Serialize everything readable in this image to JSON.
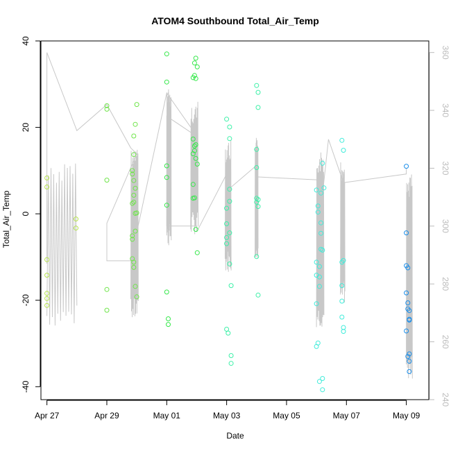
{
  "chart_data": {
    "type": "scatter",
    "title": "ATOM4 Southbound Total_Air_Temp",
    "xlabel": "Date",
    "ylabel": "Total_Air_Temp",
    "xlim": [
      -0.2,
      12.75
    ],
    "ylim": [
      -43,
      40
    ],
    "y2lim": [
      240,
      364
    ],
    "x_ticks": [
      {
        "value": 0,
        "label": "Apr 27"
      },
      {
        "value": 2,
        "label": "Apr 29"
      },
      {
        "value": 4,
        "label": "May 01"
      },
      {
        "value": 6,
        "label": "May 03"
      },
      {
        "value": 8,
        "label": "May 05"
      },
      {
        "value": 10,
        "label": "May 07"
      },
      {
        "value": 12,
        "label": "May 09"
      }
    ],
    "y_ticks": [
      {
        "value": -40,
        "label": "-40"
      },
      {
        "value": -20,
        "label": "-20"
      },
      {
        "value": 0,
        "label": "0"
      },
      {
        "value": 20,
        "label": "20"
      },
      {
        "value": 40,
        "label": "40"
      }
    ],
    "y2_ticks": [
      {
        "value": 240,
        "label": "240"
      },
      {
        "value": 260,
        "label": "260"
      },
      {
        "value": 280,
        "label": "280"
      },
      {
        "value": 300,
        "label": "300"
      },
      {
        "value": 320,
        "label": "320"
      },
      {
        "value": 340,
        "label": "340"
      },
      {
        "value": 360,
        "label": "360"
      }
    ],
    "grid": false,
    "legend": "none",
    "colors": {
      "secondary_series": "#c8c8c8",
      "secondary_axis": "#bbbbbb"
    },
    "series": [
      {
        "color": "#b5e34a",
        "points": [
          [
            0.0,
            8.3
          ],
          [
            0.0,
            6.2
          ],
          [
            0.0,
            -10.6
          ],
          [
            0.0,
            -14.2
          ],
          [
            0.0,
            -18.4
          ],
          [
            0.0,
            -19.6
          ],
          [
            0.0,
            -21.2
          ],
          [
            0.97,
            -1.2
          ],
          [
            0.97,
            -3.3
          ]
        ]
      },
      {
        "color": "#6fe54a",
        "points": [
          [
            2.0,
            25.0
          ],
          [
            2.0,
            24.2
          ],
          [
            2.0,
            7.8
          ],
          [
            2.0,
            -17.5
          ],
          [
            2.0,
            -22.3
          ],
          [
            2.85,
            10.0
          ],
          [
            2.85,
            9.2
          ],
          [
            2.85,
            2.4
          ],
          [
            2.85,
            -5.1
          ],
          [
            2.85,
            -5.9
          ],
          [
            2.85,
            -10.4
          ],
          [
            2.9,
            18.0
          ],
          [
            2.9,
            13.7
          ],
          [
            2.9,
            7.7
          ],
          [
            2.9,
            4.3
          ],
          [
            2.9,
            2.7
          ],
          [
            2.9,
            -11.2
          ],
          [
            2.9,
            -12.4
          ],
          [
            2.95,
            20.7
          ],
          [
            2.95,
            5.9
          ],
          [
            2.95,
            0.1
          ],
          [
            2.95,
            -4.0
          ],
          [
            2.95,
            -16.8
          ],
          [
            3.0,
            25.3
          ],
          [
            3.0,
            0.2
          ],
          [
            3.0,
            -19.2
          ]
        ]
      },
      {
        "color": "#35e84a",
        "points": [
          [
            4.0,
            37.0
          ],
          [
            4.0,
            30.5
          ],
          [
            4.0,
            11.1
          ],
          [
            4.0,
            8.4
          ],
          [
            4.0,
            2.0
          ],
          [
            4.0,
            -18.1
          ],
          [
            4.05,
            -24.3
          ],
          [
            4.05,
            -25.6
          ],
          [
            4.88,
            31.5
          ],
          [
            4.88,
            17.3
          ],
          [
            4.88,
            13.9
          ],
          [
            4.88,
            6.8
          ],
          [
            4.88,
            3.6
          ],
          [
            4.93,
            34.9
          ],
          [
            4.93,
            32.0
          ],
          [
            4.93,
            15.7
          ],
          [
            4.93,
            14.6
          ],
          [
            4.93,
            3.7
          ],
          [
            4.97,
            36.0
          ],
          [
            4.97,
            31.3
          ],
          [
            4.97,
            16.0
          ],
          [
            4.97,
            12.8
          ],
          [
            4.97,
            -3.6
          ],
          [
            5.02,
            34.0
          ],
          [
            5.02,
            11.5
          ],
          [
            5.02,
            -9.0
          ]
        ]
      },
      {
        "color": "#3df0a8",
        "points": [
          [
            6.0,
            21.9
          ],
          [
            6.0,
            1.3
          ],
          [
            6.0,
            -2.3
          ],
          [
            6.0,
            -5.5
          ],
          [
            6.0,
            -6.9
          ],
          [
            6.0,
            -26.7
          ],
          [
            6.05,
            -27.6
          ],
          [
            6.1,
            20.1
          ],
          [
            6.1,
            17.4
          ],
          [
            6.1,
            5.7
          ],
          [
            6.1,
            2.9
          ],
          [
            6.1,
            -4.4
          ],
          [
            6.1,
            -11.6
          ],
          [
            6.15,
            -16.6
          ],
          [
            6.15,
            -32.8
          ],
          [
            6.15,
            -34.6
          ],
          [
            7.0,
            29.7
          ],
          [
            7.0,
            14.9
          ],
          [
            7.0,
            10.7
          ],
          [
            7.0,
            3.6
          ],
          [
            7.0,
            2.7
          ],
          [
            7.0,
            -9.9
          ],
          [
            7.05,
            28.1
          ],
          [
            7.05,
            24.6
          ],
          [
            7.05,
            3.3
          ],
          [
            7.05,
            1.7
          ],
          [
            7.05,
            -18.8
          ]
        ]
      },
      {
        "color": "#40ecda",
        "points": [
          [
            9.0,
            5.5
          ],
          [
            9.0,
            -11.2
          ],
          [
            9.0,
            -14.2
          ],
          [
            9.0,
            -20.8
          ],
          [
            9.0,
            -30.7
          ],
          [
            9.05,
            -29.9
          ],
          [
            9.05,
            1.8
          ],
          [
            9.05,
            0.4
          ],
          [
            9.1,
            -12.2
          ],
          [
            9.1,
            -14.6
          ],
          [
            9.1,
            -16.8
          ],
          [
            9.1,
            -38.8
          ],
          [
            9.15,
            4.8
          ],
          [
            9.15,
            -2.1
          ],
          [
            9.15,
            -4.5
          ],
          [
            9.15,
            -8.2
          ],
          [
            9.2,
            -8.4
          ],
          [
            9.2,
            -38.1
          ],
          [
            9.2,
            -40.7
          ],
          [
            9.2,
            11.7
          ],
          [
            9.25,
            6.0
          ],
          [
            9.85,
            17.0
          ],
          [
            9.85,
            -11.2
          ],
          [
            9.85,
            -16.6
          ],
          [
            9.85,
            -20.2
          ],
          [
            9.85,
            -23.9
          ],
          [
            9.9,
            14.7
          ],
          [
            9.9,
            -10.8
          ],
          [
            9.9,
            -26.3
          ],
          [
            9.9,
            -27.2
          ]
        ]
      },
      {
        "color": "#1a8eea",
        "points": [
          [
            12.0,
            11.0
          ],
          [
            12.0,
            -4.4
          ],
          [
            12.0,
            -12.0
          ],
          [
            12.0,
            -18.3
          ],
          [
            12.0,
            -27.1
          ],
          [
            12.05,
            -12.5
          ],
          [
            12.05,
            -20.6
          ],
          [
            12.05,
            -22.0
          ],
          [
            12.05,
            -33.0
          ],
          [
            12.1,
            -22.4
          ],
          [
            12.1,
            -24.4
          ],
          [
            12.1,
            -24.6
          ],
          [
            12.1,
            -32.4
          ],
          [
            12.1,
            -34.1
          ],
          [
            12.1,
            -36.5
          ]
        ]
      }
    ],
    "secondary_series": {
      "axis": "right",
      "color": "#c8c8c8",
      "points": [
        [
          0.0,
          287
        ],
        [
          0.0,
          360
        ],
        [
          1.0,
          333
        ],
        [
          2.0,
          342
        ],
        [
          2.8,
          327
        ],
        [
          3.0,
          325
        ],
        [
          2.0,
          301
        ],
        [
          2.0,
          288
        ],
        [
          2.9,
          288
        ],
        [
          2.9,
          293
        ],
        [
          4.0,
          346
        ],
        [
          4.88,
          333
        ],
        [
          4.88,
          334
        ],
        [
          5.0,
          333
        ],
        [
          5.0,
          331
        ],
        [
          4.0,
          338
        ],
        [
          4.0,
          300
        ],
        [
          5.0,
          300
        ],
        [
          5.0,
          298
        ],
        [
          6.0,
          318
        ],
        [
          6.1,
          315
        ],
        [
          6.1,
          313
        ],
        [
          7.0,
          321
        ],
        [
          7.0,
          317
        ],
        [
          7.05,
          317
        ],
        [
          9.0,
          316
        ],
        [
          9.2,
          311
        ],
        [
          9.4,
          330
        ],
        [
          9.9,
          315
        ],
        [
          12.0,
          318
        ],
        [
          12.0,
          320
        ]
      ],
      "noise_bands": [
        {
          "x_start": 0.0,
          "x_end": 1.0,
          "y_low": 265,
          "y_high": 322
        },
        {
          "x_start": 2.8,
          "x_end": 3.05,
          "y_low": 267,
          "y_high": 327
        },
        {
          "x_start": 4.0,
          "x_end": 4.15,
          "y_low": 293,
          "y_high": 348
        },
        {
          "x_start": 4.8,
          "x_end": 5.05,
          "y_low": 297,
          "y_high": 343
        },
        {
          "x_start": 5.95,
          "x_end": 6.15,
          "y_low": 284,
          "y_high": 330
        },
        {
          "x_start": 6.95,
          "x_end": 7.05,
          "y_low": 289,
          "y_high": 331
        },
        {
          "x_start": 9.0,
          "x_end": 9.25,
          "y_low": 265,
          "y_high": 326
        },
        {
          "x_start": 9.8,
          "x_end": 9.95,
          "y_low": 273,
          "y_high": 323
        },
        {
          "x_start": 12.0,
          "x_end": 12.2,
          "y_low": 247,
          "y_high": 318
        }
      ]
    }
  }
}
